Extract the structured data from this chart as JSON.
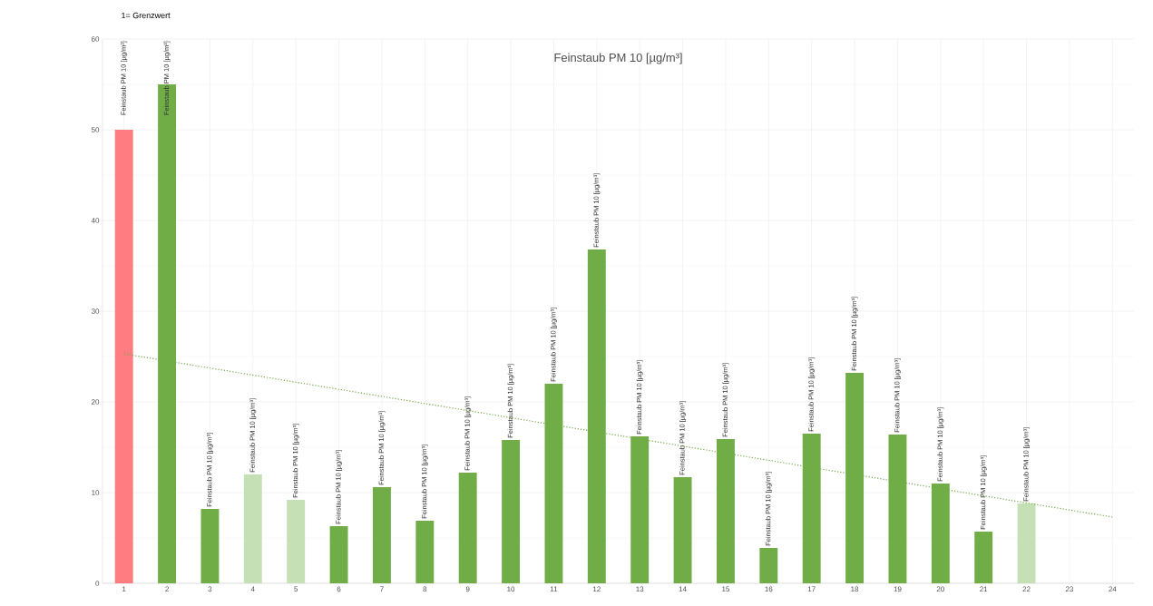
{
  "chart_data": {
    "type": "bar",
    "title": "Feinstaub PM 10 [µg/m³]",
    "annotations": [
      "1= Grenzwert"
    ],
    "x": [
      1,
      2,
      3,
      4,
      5,
      6,
      7,
      8,
      9,
      10,
      11,
      12,
      13,
      14,
      15,
      16,
      17,
      18,
      19,
      20,
      21,
      22
    ],
    "values": [
      50,
      55,
      8.2,
      12,
      9.2,
      6.3,
      10.6,
      6.9,
      12.2,
      15.8,
      22,
      36.8,
      16.2,
      11.7,
      15.9,
      3.9,
      16.5,
      23.2,
      16.4,
      11,
      5.7,
      8.8
    ],
    "colors": [
      "#ff7c80",
      "#70ad47",
      "#70ad47",
      "#c5e0b4",
      "#c5e0b4",
      "#70ad47",
      "#70ad47",
      "#70ad47",
      "#70ad47",
      "#70ad47",
      "#70ad47",
      "#70ad47",
      "#70ad47",
      "#70ad47",
      "#70ad47",
      "#70ad47",
      "#70ad47",
      "#70ad47",
      "#70ad47",
      "#70ad47",
      "#70ad47",
      "#c5e0b4"
    ],
    "value_labels": [
      "Feinstaub PM 10 [µg/m³]",
      "Feinstaub PM 10 [µg/m³]",
      "Feinstaub PM 10 [µg/m³]",
      "Feinstaub PM 10 [µg/m³]",
      "Feinstaub PM 10 [µg/m³]",
      "Feinstaub PM 10 [µg/m³]",
      "Feinstaub PM 10 [µg/m³]",
      "Feinstaub PM 10 [µg/m³]",
      "Feinstaub PM 10 [µg/m³]",
      "Feinstaub PM 10 [µg/m³]",
      "Feinstaub PM 10 [µg/m³]",
      "Feinstaub PM 10 [µg/m³]",
      "Feinstaub PM 10 [µg/m³]",
      "Feinstaub PM 10 [µg/m³]",
      "Feinstaub PM 10 [µg/m³]",
      "Feinstaub PM 10 [µg/m³]",
      "Feinstaub PM 10 [µg/m³]",
      "Feinstaub PM 10 [µg/m³]",
      "Feinstaub PM 10 [µg/m³]",
      "Feinstaub PM 10 [µg/m³]",
      "Feinstaub PM 10 [µg/m³]",
      "Feinstaub PM 10 [µg/m³]"
    ],
    "series": [
      {
        "type": "line",
        "x": [
          1,
          24
        ],
        "values": [
          25.3,
          7.3
        ],
        "color": "#70ad47",
        "line_style": "dotted"
      }
    ],
    "xlim": [
      0.5,
      24.5
    ],
    "xticks": [
      1,
      2,
      3,
      4,
      5,
      6,
      7,
      8,
      9,
      10,
      11,
      12,
      13,
      14,
      15,
      16,
      17,
      18,
      19,
      20,
      21,
      22,
      23,
      24
    ],
    "ylim": [
      0,
      60
    ],
    "yticks": [
      0,
      10,
      20,
      30,
      40,
      50,
      60
    ],
    "grid": true
  }
}
